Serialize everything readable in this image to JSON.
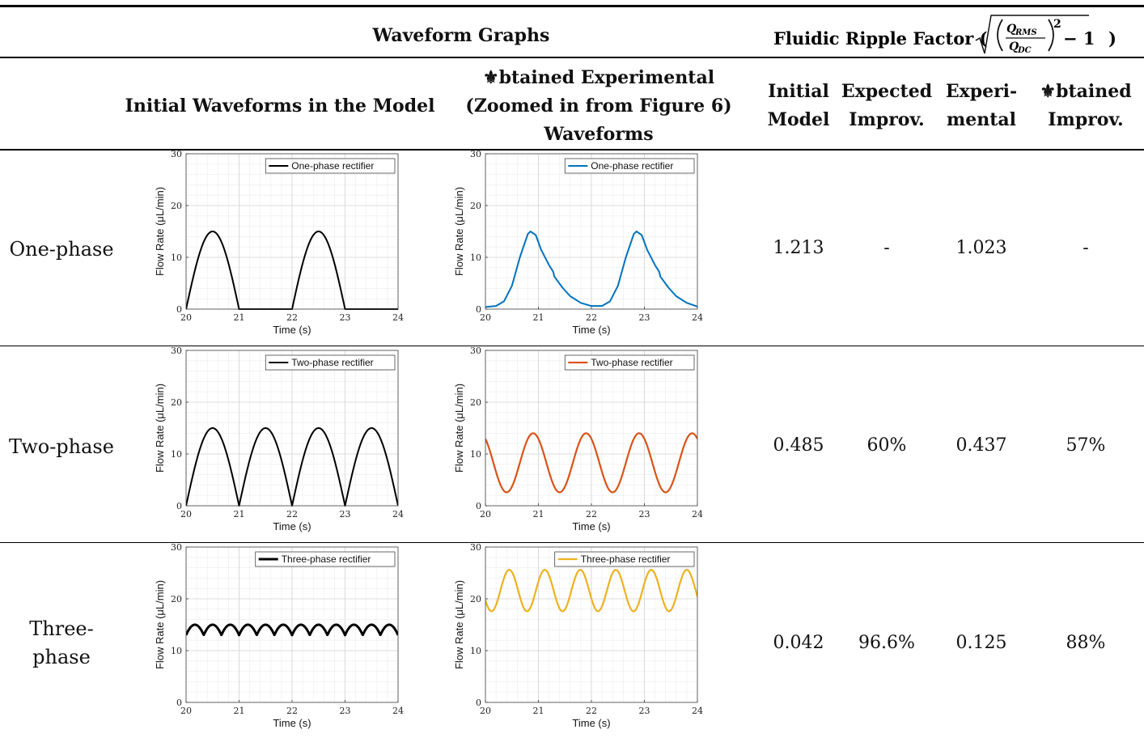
{
  "header": {
    "waveform_graphs": "Waveform Graphs",
    "ripple_factor_prefix": "Fluidic Ripple Factor (",
    "ripple_factor_suffix": ")",
    "formula_num": "Q",
    "formula_num_sub": "RMS",
    "formula_den": "Q",
    "formula_den_sub": "DC",
    "formula_exp": "2",
    "formula_minus_one": "− 1",
    "col_initial_waveforms": "Initial Waveforms in the Model",
    "col_obtained_line1": "⚜btained Experimental",
    "col_obtained_line2": "(Zoomed in from Figure 6)",
    "col_obtained_line3": "Waveforms",
    "col_initial_model_1": "Initial",
    "col_initial_model_2": "Model",
    "col_expected_1": "Expected",
    "col_expected_2": "Improv.",
    "col_experimental_1": "Experi-",
    "col_experimental_2": "mental",
    "col_obtained_impr_1": "⚜btained",
    "col_obtained_impr_2": "Improv."
  },
  "rows": [
    {
      "label_1": "One-phase",
      "label_2": "",
      "initial_model": "1.213",
      "expected": "-",
      "experimental": "1.023",
      "obtained": "-"
    },
    {
      "label_1": "Two-phase",
      "label_2": "",
      "initial_model": "0.485",
      "expected": "60%",
      "experimental": "0.437",
      "obtained": "57%"
    },
    {
      "label_1": "Three-",
      "label_2": "phase",
      "initial_model": "0.042",
      "expected": "96.6%",
      "experimental": "0.125",
      "obtained": "88%"
    }
  ],
  "chart_data": [
    {
      "type": "line",
      "id": "model-1",
      "xlabel": "Time (s)",
      "ylabel": "Flow Rate (μL/min)",
      "xlim": [
        20,
        24
      ],
      "ylim": [
        0,
        30
      ],
      "xticks": [
        20,
        21,
        22,
        23,
        24
      ],
      "yticks": [
        0,
        10,
        20,
        30
      ],
      "grid": true,
      "legend": "top-right",
      "series": [
        {
          "name": "One-phase rectifier",
          "color": "#000000",
          "kind": "half-rect",
          "amp": 15,
          "freq": 0.5,
          "offset": 0,
          "width": 2
        }
      ]
    },
    {
      "type": "line",
      "id": "exp-1",
      "xlabel": "Time (s)",
      "ylabel": "Flow Rate (μL/min)",
      "xlim": [
        20,
        24
      ],
      "ylim": [
        0,
        30
      ],
      "xticks": [
        20,
        21,
        22,
        23,
        24
      ],
      "yticks": [
        0,
        10,
        20,
        30
      ],
      "grid": true,
      "legend": "top-right",
      "series": [
        {
          "name": "One-phase rectifier",
          "color": "#0072BD",
          "width": 2,
          "x": [
            20.0,
            20.2,
            20.35,
            20.5,
            20.65,
            20.8,
            20.85,
            20.95,
            21.05,
            21.2,
            21.28,
            21.3,
            21.45,
            21.6,
            21.8,
            22.0,
            22.2,
            22.35,
            22.5,
            22.65,
            22.8,
            22.85,
            22.95,
            23.05,
            23.2,
            23.28,
            23.3,
            23.45,
            23.6,
            23.8,
            24.0
          ],
          "y": [
            0.4,
            0.6,
            1.5,
            4.5,
            10,
            14.5,
            15,
            14.3,
            11.5,
            8.5,
            7.2,
            6.3,
            4.2,
            2.5,
            1.2,
            0.6,
            0.6,
            1.5,
            4.5,
            10,
            14.5,
            15,
            14.3,
            11.5,
            8.5,
            7.2,
            6.3,
            4.2,
            2.5,
            1.2,
            0.5
          ]
        }
      ]
    },
    {
      "type": "line",
      "id": "model-2",
      "xlabel": "Time (s)",
      "ylabel": "Flow Rate (μL/min)",
      "xlim": [
        20,
        24
      ],
      "ylim": [
        0,
        30
      ],
      "xticks": [
        20,
        21,
        22,
        23,
        24
      ],
      "yticks": [
        0,
        10,
        20,
        30
      ],
      "grid": true,
      "legend": "top-right",
      "series": [
        {
          "name": "Two-phase rectifier",
          "color": "#000000",
          "kind": "full-rect",
          "amp": 15,
          "freq": 0.5,
          "offset": 0,
          "width": 2
        }
      ]
    },
    {
      "type": "line",
      "id": "exp-2",
      "xlabel": "Time (s)",
      "ylabel": "Flow Rate (μL/min)",
      "xlim": [
        20,
        24
      ],
      "ylim": [
        0,
        30
      ],
      "xticks": [
        20,
        21,
        22,
        23,
        24
      ],
      "yticks": [
        0,
        10,
        20,
        30
      ],
      "grid": true,
      "legend": "top-right",
      "series": [
        {
          "name": "Two-phase rectifier",
          "color": "#D95319",
          "kind": "sine",
          "mean": 8.3,
          "amp": 5.7,
          "period": 1.0,
          "peak": 20.9,
          "width": 2.2
        }
      ]
    },
    {
      "type": "line",
      "id": "model-3",
      "xlabel": "Time (s)",
      "ylabel": "Flow Rate (μL/min)",
      "xlim": [
        20,
        24
      ],
      "ylim": [
        0,
        30
      ],
      "xticks": [
        20,
        21,
        22,
        23,
        24
      ],
      "yticks": [
        0,
        10,
        20,
        30
      ],
      "grid": true,
      "legend": "top-right",
      "series": [
        {
          "name": "Three-phase rectifier",
          "color": "#000000",
          "kind": "three-rect",
          "amp": 15,
          "freq": 0.5,
          "offset": 0,
          "width": 3
        }
      ]
    },
    {
      "type": "line",
      "id": "exp-3",
      "xlabel": "Time (s)",
      "ylabel": "Flow Rate (μL/min)",
      "xlim": [
        20,
        24
      ],
      "ylim": [
        0,
        30
      ],
      "xticks": [
        20,
        21,
        22,
        23,
        24
      ],
      "yticks": [
        0,
        10,
        20,
        30
      ],
      "grid": true,
      "legend": "top-right",
      "series": [
        {
          "name": "Three-phase rectifier",
          "color": "#EDB120",
          "kind": "sine",
          "mean": 21.6,
          "amp": 4.0,
          "period": 0.67,
          "peak": 20.45,
          "width": 2.2
        }
      ]
    }
  ]
}
